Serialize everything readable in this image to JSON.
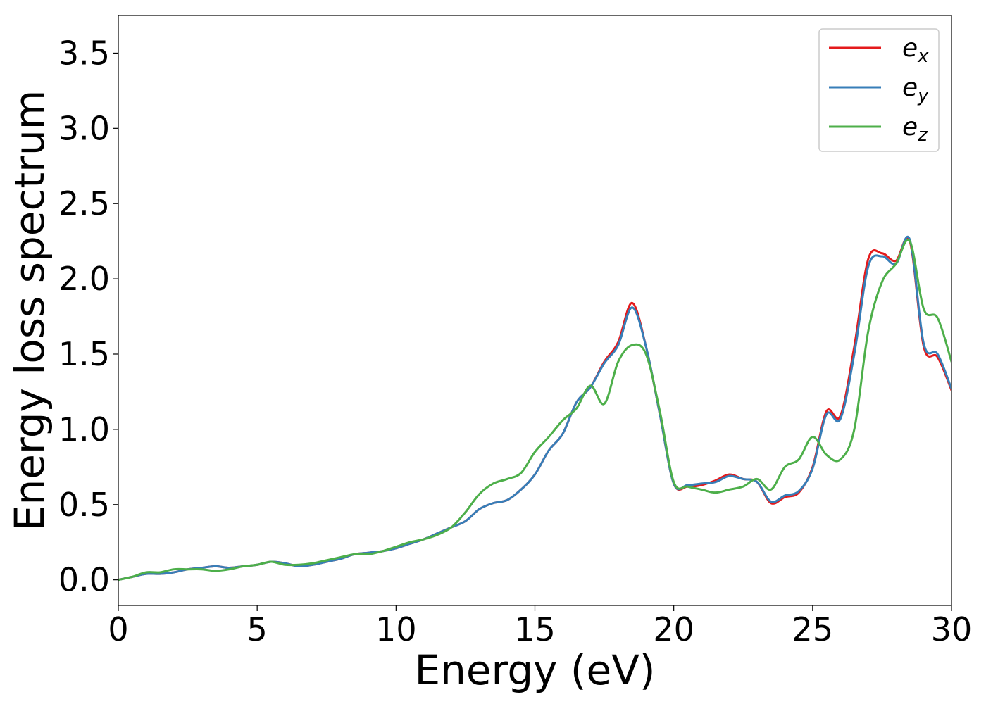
{
  "chart_data": {
    "type": "line",
    "title": "",
    "xlabel": "Energy (eV)",
    "ylabel": "Energy loss spectrum",
    "xlim": [
      0,
      30
    ],
    "ylim": [
      -0.17,
      3.75
    ],
    "xticks": [
      0,
      5,
      10,
      15,
      20,
      25,
      30
    ],
    "yticks": [
      0.0,
      0.5,
      1.0,
      1.5,
      2.0,
      2.5,
      3.0,
      3.5
    ],
    "xtick_labels": [
      "0",
      "5",
      "10",
      "15",
      "20",
      "25",
      "30"
    ],
    "ytick_labels": [
      "0.0",
      "0.5",
      "1.0",
      "1.5",
      "2.0",
      "2.5",
      "3.0",
      "3.5"
    ],
    "grid": false,
    "legend_position": "top-right",
    "series": [
      {
        "name": "e_x",
        "label_base": "e",
        "label_sub": "x",
        "color": "#e41a1c",
        "x": [
          0,
          0.5,
          1,
          1.5,
          2,
          2.5,
          3,
          3.5,
          4,
          4.5,
          5,
          5.5,
          6,
          6.5,
          7,
          7.5,
          8,
          8.5,
          9,
          9.5,
          10,
          10.5,
          11,
          11.5,
          12,
          12.5,
          13,
          13.5,
          14,
          14.5,
          15,
          15.5,
          16,
          16.5,
          17,
          17.5,
          18,
          18.5,
          19,
          19.5,
          20,
          20.5,
          21,
          21.5,
          22,
          22.5,
          23,
          23.5,
          24,
          24.5,
          25,
          25.5,
          26,
          26.5,
          27,
          27.5,
          28,
          28.5,
          29,
          29.5,
          30
        ],
        "y": [
          0.0,
          0.02,
          0.04,
          0.04,
          0.05,
          0.07,
          0.08,
          0.09,
          0.08,
          0.09,
          0.1,
          0.12,
          0.11,
          0.09,
          0.1,
          0.12,
          0.14,
          0.17,
          0.18,
          0.19,
          0.21,
          0.24,
          0.27,
          0.31,
          0.35,
          0.39,
          0.47,
          0.51,
          0.53,
          0.6,
          0.7,
          0.86,
          0.97,
          1.18,
          1.28,
          1.45,
          1.58,
          1.84,
          1.55,
          1.1,
          0.64,
          0.62,
          0.63,
          0.66,
          0.7,
          0.67,
          0.65,
          0.51,
          0.55,
          0.58,
          0.75,
          1.12,
          1.09,
          1.55,
          2.13,
          2.17,
          2.12,
          2.25,
          1.55,
          1.48,
          1.26
        ]
      },
      {
        "name": "e_y",
        "label_base": "e",
        "label_sub": "y",
        "color": "#377eb8",
        "x": [
          0,
          0.5,
          1,
          1.5,
          2,
          2.5,
          3,
          3.5,
          4,
          4.5,
          5,
          5.5,
          6,
          6.5,
          7,
          7.5,
          8,
          8.5,
          9,
          9.5,
          10,
          10.5,
          11,
          11.5,
          12,
          12.5,
          13,
          13.5,
          14,
          14.5,
          15,
          15.5,
          16,
          16.5,
          17,
          17.5,
          18,
          18.5,
          19,
          19.5,
          20,
          20.5,
          21,
          21.5,
          22,
          22.5,
          23,
          23.5,
          24,
          24.5,
          25,
          25.5,
          26,
          26.5,
          27,
          27.5,
          28,
          28.5,
          29,
          29.5,
          30
        ],
        "y": [
          0.0,
          0.02,
          0.04,
          0.04,
          0.05,
          0.07,
          0.08,
          0.09,
          0.08,
          0.09,
          0.1,
          0.12,
          0.11,
          0.09,
          0.1,
          0.12,
          0.14,
          0.17,
          0.18,
          0.19,
          0.21,
          0.24,
          0.27,
          0.31,
          0.35,
          0.39,
          0.47,
          0.51,
          0.53,
          0.6,
          0.7,
          0.86,
          0.97,
          1.18,
          1.28,
          1.44,
          1.56,
          1.81,
          1.55,
          1.1,
          0.64,
          0.63,
          0.64,
          0.65,
          0.69,
          0.67,
          0.65,
          0.52,
          0.56,
          0.59,
          0.74,
          1.1,
          1.07,
          1.5,
          2.08,
          2.15,
          2.1,
          2.26,
          1.57,
          1.5,
          1.27
        ]
      },
      {
        "name": "e_z",
        "label_base": "e",
        "label_sub": "z",
        "color": "#4daf4a",
        "x": [
          0,
          0.5,
          1,
          1.5,
          2,
          2.5,
          3,
          3.5,
          4,
          4.5,
          5,
          5.5,
          6,
          6.5,
          7,
          7.5,
          8,
          8.5,
          9,
          9.5,
          10,
          10.5,
          11,
          11.5,
          12,
          12.5,
          13,
          13.5,
          14,
          14.5,
          15,
          15.5,
          16,
          16.5,
          17,
          17.5,
          18,
          18.5,
          19,
          19.5,
          20,
          20.5,
          21,
          21.5,
          22,
          22.5,
          23,
          23.5,
          24,
          24.5,
          25,
          25.5,
          26,
          26.5,
          27,
          27.5,
          28,
          28.5,
          29,
          29.5,
          30
        ],
        "y": [
          0.0,
          0.02,
          0.05,
          0.05,
          0.07,
          0.07,
          0.07,
          0.06,
          0.07,
          0.09,
          0.1,
          0.12,
          0.1,
          0.1,
          0.11,
          0.13,
          0.15,
          0.17,
          0.17,
          0.19,
          0.22,
          0.25,
          0.27,
          0.3,
          0.35,
          0.45,
          0.57,
          0.64,
          0.67,
          0.71,
          0.85,
          0.95,
          1.06,
          1.14,
          1.29,
          1.17,
          1.45,
          1.56,
          1.5,
          1.12,
          0.65,
          0.62,
          0.6,
          0.58,
          0.6,
          0.62,
          0.67,
          0.6,
          0.75,
          0.8,
          0.95,
          0.83,
          0.8,
          1.0,
          1.65,
          1.98,
          2.1,
          2.25,
          1.8,
          1.74,
          1.45
        ]
      }
    ]
  }
}
